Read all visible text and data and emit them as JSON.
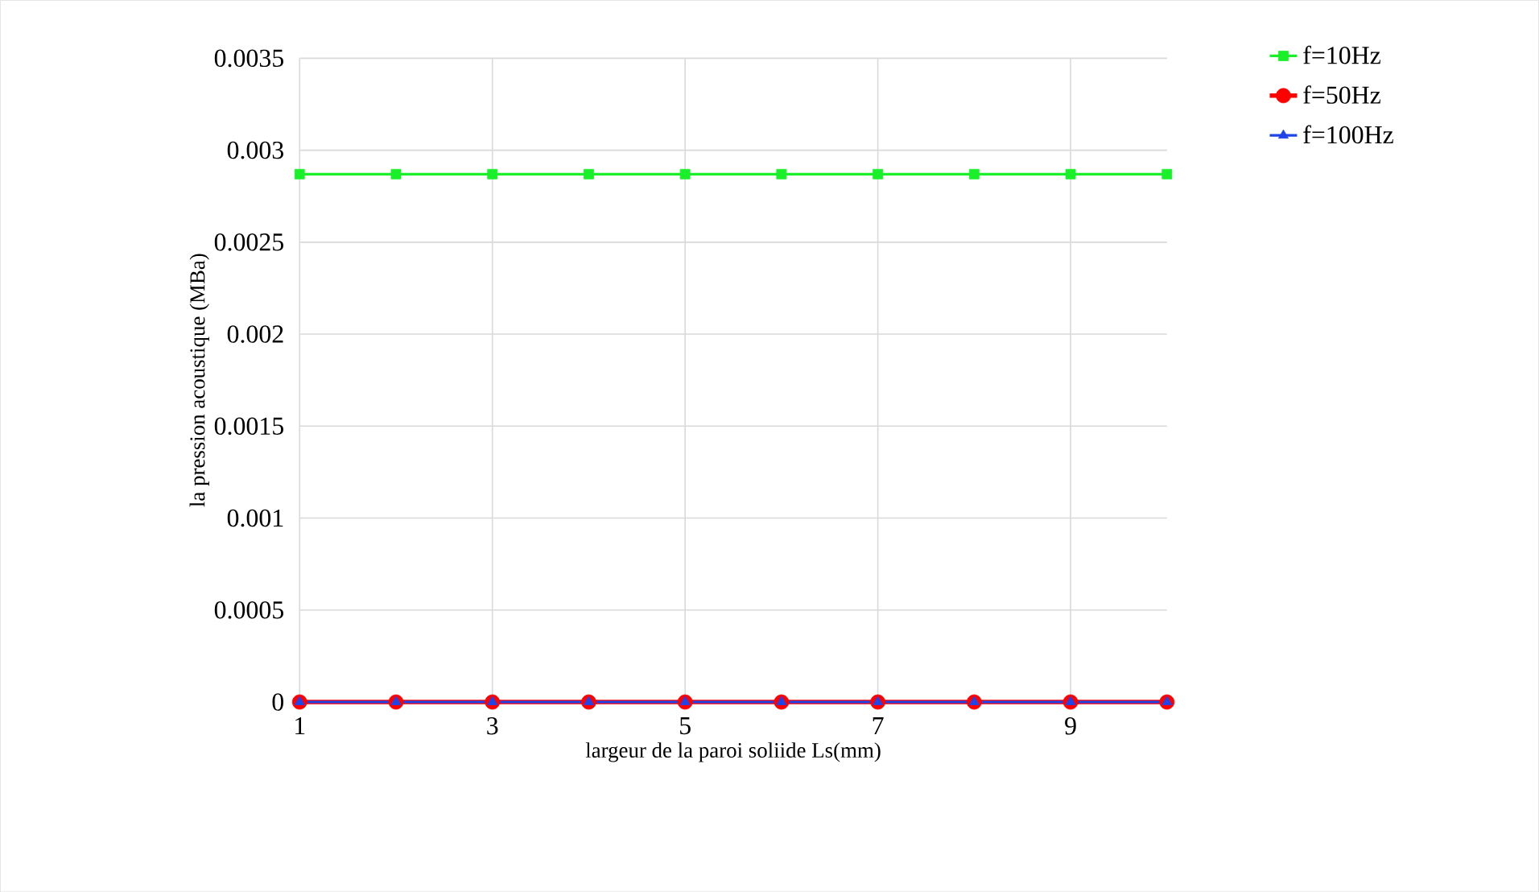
{
  "chart_data": {
    "type": "line",
    "xlabel": "largeur de la paroi soliide Ls(mm)",
    "ylabel": "la pression acoustique (MBa)",
    "x": [
      1,
      2,
      3,
      4,
      5,
      6,
      7,
      8,
      9,
      10
    ],
    "series": [
      {
        "name": "f=10Hz",
        "color": "#19f02a",
        "marker": "square",
        "values": [
          0.00287,
          0.00287,
          0.00287,
          0.00287,
          0.00287,
          0.00287,
          0.00287,
          0.00287,
          0.00287,
          0.00287
        ]
      },
      {
        "name": "f=50Hz",
        "color": "#ff0000",
        "marker": "circle",
        "values": [
          0,
          0,
          0,
          0,
          0,
          0,
          0,
          0,
          0,
          0
        ]
      },
      {
        "name": "f=100Hz",
        "color": "#1f45e8",
        "marker": "triangle",
        "values": [
          0,
          0,
          0,
          0,
          0,
          0,
          0,
          0,
          0,
          0
        ]
      }
    ],
    "xlim": [
      1,
      10
    ],
    "xticks": [
      1,
      3,
      5,
      7,
      9
    ],
    "ylim": [
      0,
      0.0035
    ],
    "yticks": [
      0,
      0.0005,
      0.001,
      0.0015,
      0.002,
      0.0025,
      0.003,
      0.0035
    ],
    "grid": true,
    "legend": "top right",
    "line_style": "solid"
  }
}
